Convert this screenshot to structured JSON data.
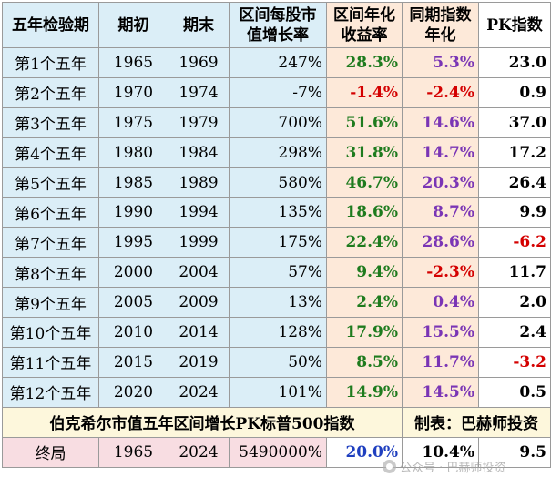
{
  "header": {
    "period": "五年检验期",
    "start": "期初",
    "end": "期末",
    "market_cap": "区间每股市值增长率",
    "cagr": "区间年化收益率",
    "index": "同期指数年化",
    "pk": "PK指数"
  },
  "rows": [
    {
      "period": "第1个五年",
      "start": "1965",
      "end": "1969",
      "mc": "247%",
      "cagr": "28.3%",
      "idx": "5.3%",
      "pk": "23.0"
    },
    {
      "period": "第2个五年",
      "start": "1970",
      "end": "1974",
      "mc": "-7%",
      "cagr": "-1.4%",
      "idx": "-2.4%",
      "pk": "0.9"
    },
    {
      "period": "第3个五年",
      "start": "1975",
      "end": "1979",
      "mc": "700%",
      "cagr": "51.6%",
      "idx": "14.6%",
      "pk": "37.0"
    },
    {
      "period": "第4个五年",
      "start": "1980",
      "end": "1984",
      "mc": "298%",
      "cagr": "31.8%",
      "idx": "14.7%",
      "pk": "17.2"
    },
    {
      "period": "第5个五年",
      "start": "1985",
      "end": "1989",
      "mc": "580%",
      "cagr": "46.7%",
      "idx": "20.3%",
      "pk": "26.4"
    },
    {
      "period": "第6个五年",
      "start": "1990",
      "end": "1994",
      "mc": "135%",
      "cagr": "18.6%",
      "idx": "8.7%",
      "pk": "9.9"
    },
    {
      "period": "第7个五年",
      "start": "1995",
      "end": "1999",
      "mc": "175%",
      "cagr": "22.4%",
      "idx": "28.6%",
      "pk": "-6.2"
    },
    {
      "period": "第8个五年",
      "start": "2000",
      "end": "2004",
      "mc": "57%",
      "cagr": "9.4%",
      "idx": "-2.3%",
      "pk": "11.7"
    },
    {
      "period": "第9个五年",
      "start": "2005",
      "end": "2009",
      "mc": "13%",
      "cagr": "2.4%",
      "idx": "0.4%",
      "pk": "2.0"
    },
    {
      "period": "第10个五年",
      "start": "2010",
      "end": "2014",
      "mc": "128%",
      "cagr": "17.9%",
      "idx": "15.5%",
      "pk": "2.4"
    },
    {
      "period": "第11个五年",
      "start": "2015",
      "end": "2019",
      "mc": "50%",
      "cagr": "8.5%",
      "idx": "11.7%",
      "pk": "-3.2"
    },
    {
      "period": "第12个五年",
      "start": "2020",
      "end": "2024",
      "mc": "101%",
      "cagr": "14.9%",
      "idx": "14.5%",
      "pk": "0.5"
    }
  ],
  "caption": {
    "main": "伯克希尔市值五年区间增长PK标普500指数",
    "credit": "制表：巴赫师投资"
  },
  "final": {
    "label": "终局",
    "start": "1965",
    "end": "2024",
    "mc": "5490000%",
    "cagr": "20.0%",
    "idx": "10.4%",
    "pk": "9.5"
  },
  "watermark": {
    "text": "公众号 · 巴赫师投资",
    "icon": "wechat-icon"
  },
  "colors": {
    "positive": "#1e7b1e",
    "negative": "#d40000",
    "index": "#7a35b5",
    "final_cagr": "#1f3fbf",
    "header_bg": "#dbeef7",
    "highlight_bg": "#fde9d9",
    "caption_bg": "#fdf7dc",
    "final_bg": "#f8dde2"
  }
}
